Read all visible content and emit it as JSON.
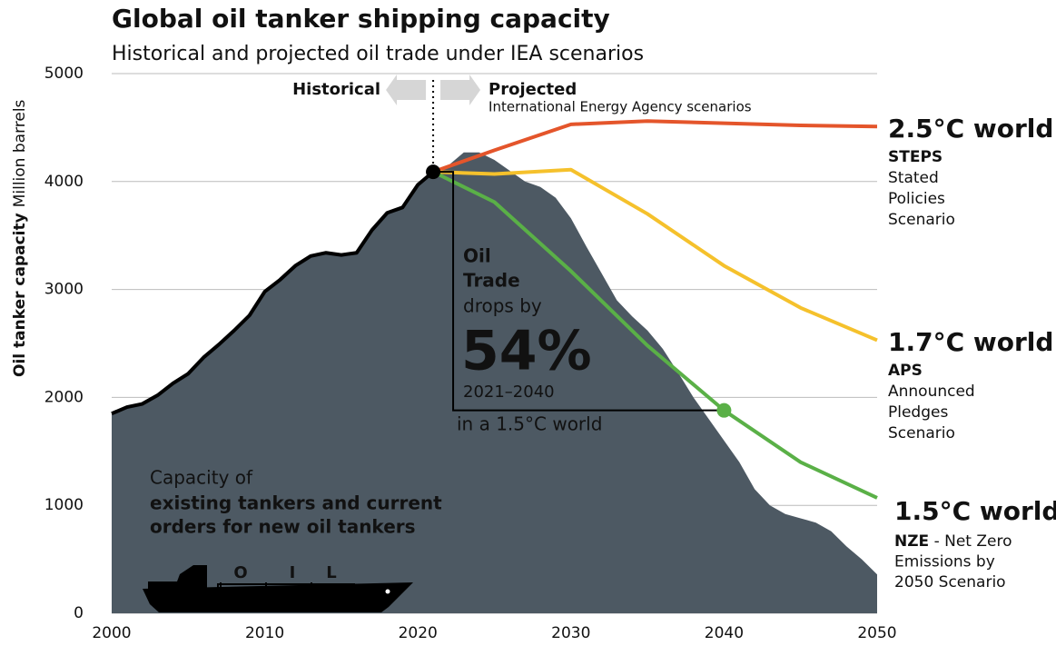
{
  "chart_data": {
    "type": "area",
    "title": "Global oil tanker shipping capacity",
    "subtitle": "Historical and projected oil trade under IEA scenarios",
    "y_label": "Oil tanker capacity",
    "y_unit": "Million barrels",
    "xlim": [
      2000,
      2050
    ],
    "ylim": [
      0,
      5000
    ],
    "xticks": [
      2000,
      2010,
      2020,
      2030,
      2040,
      2050
    ],
    "yticks": [
      0,
      1000,
      2000,
      3000,
      4000,
      5000
    ],
    "grid": true,
    "divider": {
      "x": 2021,
      "left_label": "Historical",
      "right_label": "Projected",
      "right_sublabel": "International Energy Agency scenarios"
    },
    "series": [
      {
        "name": "Capacity",
        "type": "area",
        "color": "#4d5963",
        "x": [
          2000,
          2001,
          2002,
          2003,
          2004,
          2005,
          2006,
          2007,
          2008,
          2009,
          2010,
          2011,
          2012,
          2013,
          2014,
          2015,
          2016,
          2017,
          2018,
          2019,
          2020,
          2021,
          2022,
          2023,
          2024,
          2025,
          2026,
          2027,
          2028,
          2029,
          2030,
          2031,
          2032,
          2033,
          2034,
          2035,
          2036,
          2037,
          2038,
          2039,
          2040,
          2041,
          2042,
          2043,
          2044,
          2045,
          2046,
          2047,
          2048,
          2049,
          2050
        ],
        "values": [
          1850,
          1910,
          1940,
          2020,
          2130,
          2220,
          2370,
          2490,
          2620,
          2760,
          2980,
          3090,
          3220,
          3310,
          3340,
          3320,
          3340,
          3550,
          3710,
          3760,
          3970,
          4090,
          4150,
          4270,
          4270,
          4200,
          4100,
          4000,
          3950,
          3850,
          3660,
          3400,
          3150,
          2900,
          2750,
          2620,
          2450,
          2230,
          2000,
          1800,
          1600,
          1400,
          1150,
          1000,
          920,
          880,
          840,
          760,
          620,
          500,
          360
        ],
        "label_lines": [
          "Capacity of",
          "existing tankers and current",
          "orders for new oil tankers"
        ]
      },
      {
        "name": "Historical",
        "type": "line",
        "color": "#000000",
        "x": [
          2000,
          2001,
          2002,
          2003,
          2004,
          2005,
          2006,
          2007,
          2008,
          2009,
          2010,
          2011,
          2012,
          2013,
          2014,
          2015,
          2016,
          2017,
          2018,
          2019,
          2020,
          2021
        ],
        "values": [
          1850,
          1910,
          1940,
          2020,
          2130,
          2220,
          2370,
          2490,
          2620,
          2760,
          2980,
          3090,
          3220,
          3310,
          3340,
          3320,
          3340,
          3550,
          3710,
          3760,
          3970,
          4090
        ]
      },
      {
        "name": "2.5°C world",
        "type": "line",
        "color": "#e4552b",
        "code": "STEPS",
        "description": [
          "Stated",
          "Policies",
          "Scenario"
        ],
        "x": [
          2021,
          2025,
          2030,
          2035,
          2040,
          2045,
          2050
        ],
        "values": [
          4090,
          4290,
          4530,
          4560,
          4540,
          4520,
          4510
        ]
      },
      {
        "name": "1.7°C world",
        "type": "line",
        "color": "#f5c12c",
        "code": "APS",
        "description": [
          "Announced",
          "Pledges",
          "Scenario"
        ],
        "x": [
          2021,
          2025,
          2030,
          2035,
          2040,
          2045,
          2050
        ],
        "values": [
          4090,
          4070,
          4110,
          3700,
          3220,
          2830,
          2530
        ]
      },
      {
        "name": "1.5°C world",
        "type": "line",
        "color": "#5ab047",
        "code": "NZE",
        "description": [
          " - Net Zero",
          "Emissions by",
          "2050 Scenario"
        ],
        "x": [
          2021,
          2025,
          2030,
          2035,
          2040,
          2045,
          2050
        ],
        "values": [
          4090,
          3810,
          3170,
          2480,
          1880,
          1400,
          1070
        ]
      }
    ],
    "annotation": {
      "lines": [
        "Oil",
        "Trade",
        "drops by"
      ],
      "big": "54%",
      "period": "2021–2040",
      "note": "in a 1.5°C world"
    },
    "ship_text": [
      "O",
      "I",
      "L"
    ]
  }
}
